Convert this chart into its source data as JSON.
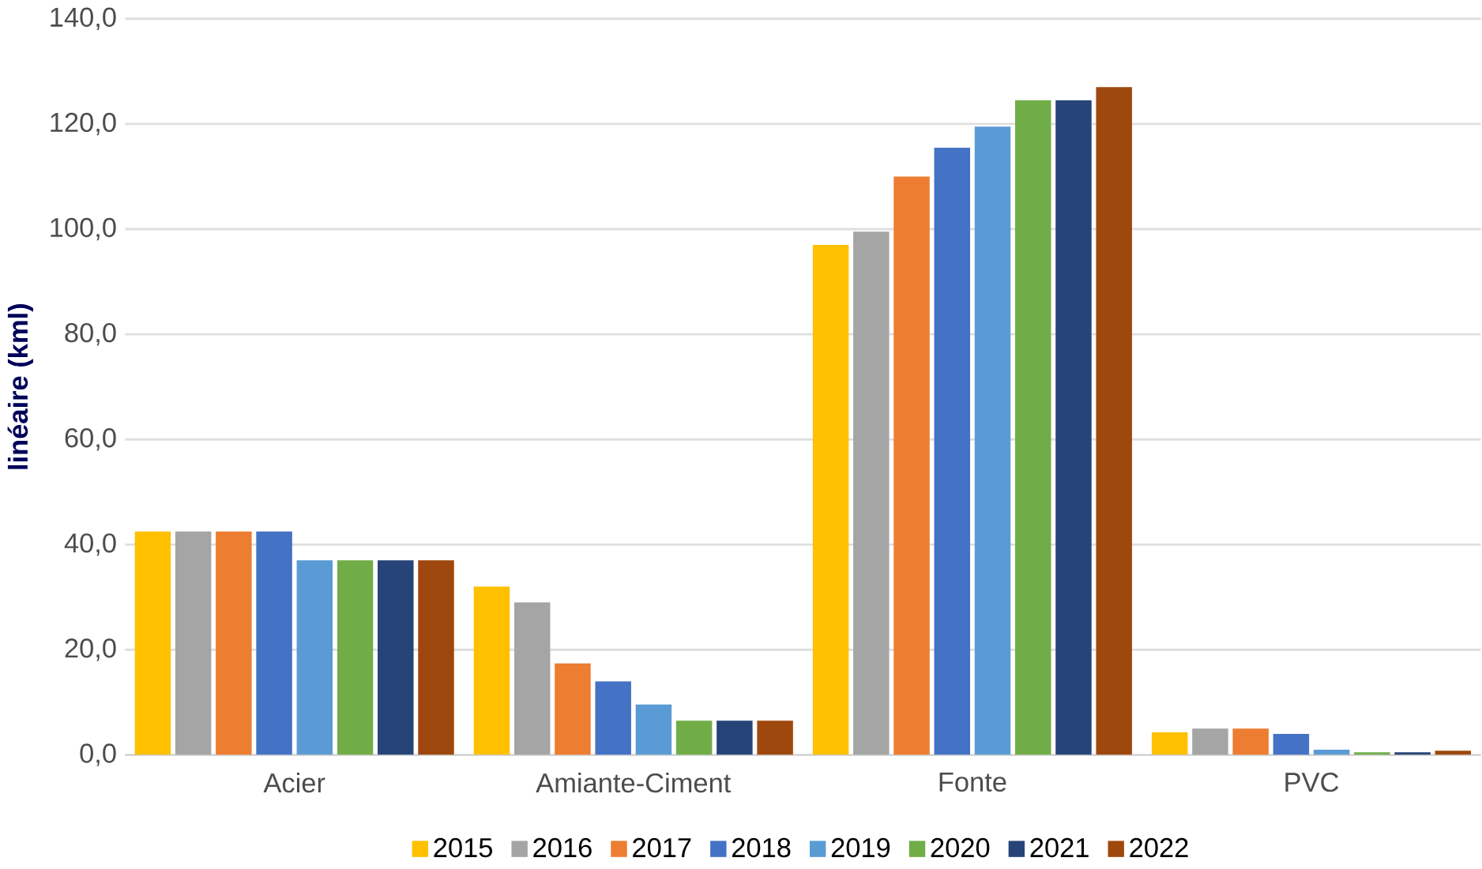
{
  "chart_data": {
    "type": "bar",
    "ylabel": "linéaire (kml)",
    "categories": [
      "Acier",
      "Amiante-Ciment",
      "Fonte",
      "PVC"
    ],
    "series": [
      {
        "name": "2015",
        "color": "#ffc000",
        "values": [
          42.5,
          32,
          97,
          4.3
        ]
      },
      {
        "name": "2016",
        "color": "#a5a5a5",
        "values": [
          42.5,
          29,
          99.5,
          5
        ]
      },
      {
        "name": "2017",
        "color": "#ed7d31",
        "values": [
          42.5,
          17.4,
          110,
          5
        ]
      },
      {
        "name": "2018",
        "color": "#4472c4",
        "values": [
          42.5,
          14,
          115.5,
          4
        ]
      },
      {
        "name": "2019",
        "color": "#5b9bd5",
        "values": [
          37,
          9.6,
          119.5,
          1
        ]
      },
      {
        "name": "2020",
        "color": "#70ad47",
        "values": [
          37,
          6.5,
          124.5,
          0.5
        ]
      },
      {
        "name": "2021",
        "color": "#264478",
        "values": [
          37,
          6.5,
          124.5,
          0.5
        ]
      },
      {
        "name": "2022",
        "color": "#9e480e",
        "values": [
          37,
          6.5,
          127,
          0.8
        ]
      }
    ],
    "ylim": [
      0,
      140
    ],
    "yticks": [
      {
        "value": 0,
        "label": "0,0"
      },
      {
        "value": 20,
        "label": "20,0"
      },
      {
        "value": 40,
        "label": "40,0"
      },
      {
        "value": 60,
        "label": "60,0"
      },
      {
        "value": 80,
        "label": "80,0"
      },
      {
        "value": 100,
        "label": "100,0"
      },
      {
        "value": 120,
        "label": "120,0"
      },
      {
        "value": 140,
        "label": "140,0"
      }
    ],
    "grid": "y",
    "legend": "bottom"
  }
}
